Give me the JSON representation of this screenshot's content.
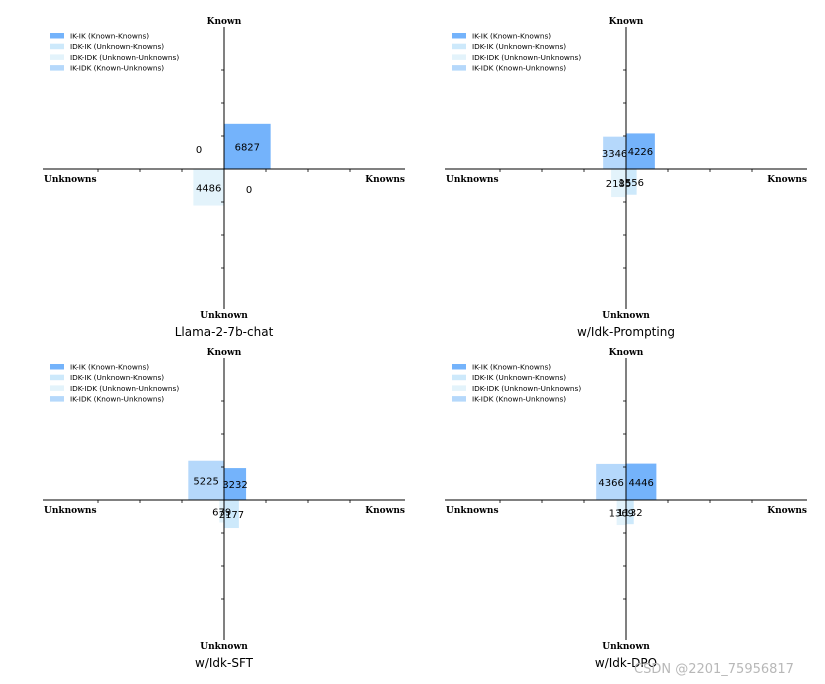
{
  "chart_data": [
    {
      "type": "bar",
      "layout": "quadrant",
      "title": "Llama-2-7b-chat",
      "axis_labels": {
        "top": "Known",
        "bottom": "Unknown",
        "left": "Unknowns",
        "right": "Knowns"
      },
      "xlim": [
        -7000,
        7000
      ],
      "ylim": [
        -7000,
        7000
      ],
      "legend": [
        "IK-IK (Known-Knowns)",
        "IDK-IK (Unknown-Knowns)",
        "IDK-IDK (Unknown-Unknowns)",
        "IK-IDK (Known-Unknowns)"
      ],
      "series": [
        {
          "name": "IK-IK (Known-Knowns)",
          "value": 6827
        },
        {
          "name": "IDK-IK (Unknown-Knowns)",
          "value": 0
        },
        {
          "name": "IDK-IDK (Unknown-Unknowns)",
          "value": 4486
        },
        {
          "name": "IK-IDK (Known-Unknowns)",
          "value": 0
        }
      ]
    },
    {
      "type": "bar",
      "layout": "quadrant",
      "title": "w/Idk-Prompting",
      "axis_labels": {
        "top": "Known",
        "bottom": "Unknown",
        "left": "Unknowns",
        "right": "Knowns"
      },
      "xlim": [
        -7000,
        7000
      ],
      "ylim": [
        -7000,
        7000
      ],
      "legend": [
        "IK-IK (Known-Knowns)",
        "IDK-IK (Unknown-Knowns)",
        "IDK-IDK (Unknown-Unknowns)",
        "IK-IDK (Known-Unknowns)"
      ],
      "series": [
        {
          "name": "IK-IK (Known-Knowns)",
          "value": 4226
        },
        {
          "name": "IDK-IK (Unknown-Knowns)",
          "value": 1556
        },
        {
          "name": "IDK-IDK (Unknown-Unknowns)",
          "value": 2185
        },
        {
          "name": "IK-IDK (Known-Unknowns)",
          "value": 3346
        }
      ]
    },
    {
      "type": "bar",
      "layout": "quadrant",
      "title": "w/Idk-SFT",
      "axis_labels": {
        "top": "Known",
        "bottom": "Unknown",
        "left": "Unknowns",
        "right": "Knowns"
      },
      "xlim": [
        -7000,
        7000
      ],
      "ylim": [
        -7000,
        7000
      ],
      "legend": [
        "IK-IK (Known-Knowns)",
        "IDK-IK (Unknown-Knowns)",
        "IDK-IDK (Unknown-Unknowns)",
        "IK-IDK (Known-Unknowns)"
      ],
      "series": [
        {
          "name": "IK-IK (Known-Knowns)",
          "value": 3232
        },
        {
          "name": "IDK-IK (Unknown-Knowns)",
          "value": 2177
        },
        {
          "name": "IDK-IDK (Unknown-Unknowns)",
          "value": 679
        },
        {
          "name": "IK-IDK (Known-Unknowns)",
          "value": 5225
        }
      ]
    },
    {
      "type": "bar",
      "layout": "quadrant",
      "title": "w/Idk-DPO",
      "axis_labels": {
        "top": "Known",
        "bottom": "Unknown",
        "left": "Unknowns",
        "right": "Knowns"
      },
      "xlim": [
        -7000,
        7000
      ],
      "ylim": [
        -7000,
        7000
      ],
      "legend": [
        "IK-IK (Known-Knowns)",
        "IDK-IK (Unknown-Knowns)",
        "IDK-IDK (Unknown-Unknowns)",
        "IK-IDK (Known-Unknowns)"
      ],
      "series": [
        {
          "name": "IK-IK (Known-Knowns)",
          "value": 4446
        },
        {
          "name": "IDK-IK (Unknown-Knowns)",
          "value": 1132
        },
        {
          "name": "IDK-IDK (Unknown-Unknowns)",
          "value": 1369
        },
        {
          "name": "IK-IDK (Known-Unknowns)",
          "value": 4366
        }
      ]
    }
  ],
  "colors": {
    "ik_ik": "#74b3fb",
    "idk_ik": "#cde9fb",
    "idk_idk": "#e3f3fb",
    "ik_idk": "#b5d8fb",
    "axis": "#000000"
  },
  "watermark": "CSDN @2201_75956817"
}
